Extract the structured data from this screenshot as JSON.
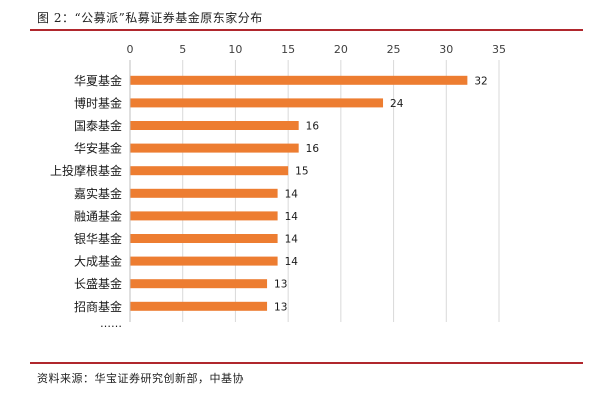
{
  "figure": {
    "title": "图 2：“公募派”私募证券基金原东家分布",
    "source": "资料来源：华宝证券研究创新部，中基协"
  },
  "chart_data": {
    "type": "bar",
    "orientation": "horizontal",
    "categories": [
      "华夏基金",
      "博时基金",
      "国泰基金",
      "华安基金",
      "上投摩根基金",
      "嘉实基金",
      "融通基金",
      "银华基金",
      "大成基金",
      "长盛基金",
      "招商基金"
    ],
    "values": [
      32,
      24,
      16,
      16,
      15,
      14,
      14,
      14,
      14,
      13,
      13
    ],
    "trailing_category_label": "……",
    "xlim": [
      0,
      35
    ],
    "xticks": [
      0,
      5,
      10,
      15,
      20,
      25,
      30,
      35
    ],
    "xaxis_position": "top",
    "grid": "vertical",
    "legend": "none",
    "data_labels": true,
    "bar_color": "#ED7D31",
    "grid_color": "#D9D9D9"
  }
}
